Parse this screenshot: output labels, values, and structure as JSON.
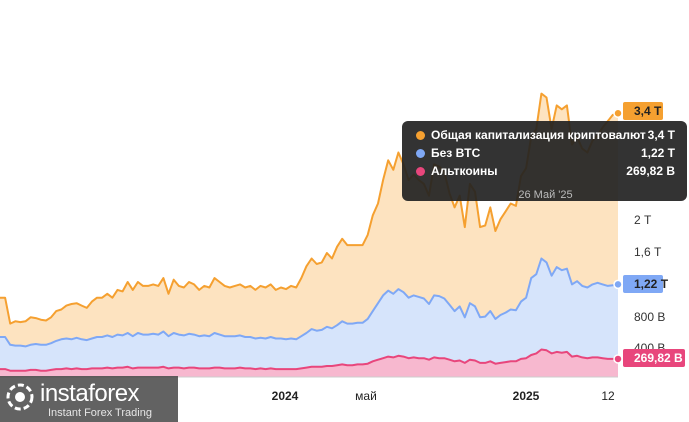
{
  "chart_data": {
    "type": "area",
    "x_labels": [
      "2024",
      "май",
      "2025",
      "12"
    ],
    "y_ticks": [
      "2 Т",
      "1,6 Т",
      "800 В",
      "400 В"
    ],
    "series": [
      {
        "name": "Общая капитализация криптовалют",
        "color": "#f5a030",
        "fill": "#fde3c0",
        "last_label": "3,4 Т",
        "values": [
          1.05,
          1.05,
          0.72,
          0.75,
          0.74,
          0.75,
          0.8,
          0.79,
          0.77,
          0.76,
          0.8,
          0.88,
          0.9,
          0.95,
          0.97,
          0.98,
          0.95,
          0.92,
          1.0,
          1.05,
          1.05,
          1.1,
          1.05,
          1.15,
          1.13,
          1.25,
          1.15,
          1.25,
          1.2,
          1.2,
          1.22,
          1.2,
          1.3,
          1.1,
          1.28,
          1.2,
          1.18,
          1.25,
          1.22,
          1.15,
          1.2,
          1.18,
          1.3,
          1.25,
          1.2,
          1.18,
          1.2,
          1.22,
          1.18,
          1.2,
          1.15,
          1.2,
          1.18,
          1.22,
          1.15,
          1.18,
          1.16,
          1.2,
          1.18,
          1.3,
          1.45,
          1.55,
          1.48,
          1.5,
          1.62,
          1.55,
          1.7,
          1.8,
          1.72,
          1.72,
          1.72,
          1.72,
          1.85,
          2.1,
          2.25,
          2.55,
          2.8,
          2.68,
          2.9,
          2.75,
          2.55,
          2.62,
          2.55,
          2.5,
          2.35,
          2.75,
          2.72,
          2.65,
          2.38,
          2.2,
          2.35,
          1.95,
          2.5,
          2.4,
          1.95,
          1.97,
          2.2,
          1.9,
          2.05,
          2.15,
          2.25,
          2.22,
          2.6,
          2.7,
          3.1,
          3.2,
          3.65,
          3.6,
          3.2,
          3.5,
          3.45,
          3.5,
          3.0,
          3.1,
          2.95,
          2.9,
          3.05,
          3.12,
          3.22,
          3.3,
          3.38,
          3.4
        ]
      },
      {
        "name": "Без BTC",
        "color": "#7fa8f5",
        "fill": "#d6e4fb",
        "last_label": "1,22 Т",
        "values": [
          0.55,
          0.55,
          0.45,
          0.44,
          0.44,
          0.43,
          0.45,
          0.46,
          0.45,
          0.45,
          0.47,
          0.5,
          0.52,
          0.53,
          0.52,
          0.54,
          0.52,
          0.51,
          0.53,
          0.55,
          0.55,
          0.57,
          0.55,
          0.58,
          0.57,
          0.6,
          0.56,
          0.6,
          0.58,
          0.58,
          0.59,
          0.58,
          0.62,
          0.56,
          0.6,
          0.58,
          0.57,
          0.59,
          0.58,
          0.56,
          0.57,
          0.56,
          0.6,
          0.58,
          0.56,
          0.56,
          0.56,
          0.57,
          0.55,
          0.55,
          0.53,
          0.54,
          0.53,
          0.55,
          0.53,
          0.53,
          0.52,
          0.53,
          0.52,
          0.56,
          0.6,
          0.65,
          0.63,
          0.64,
          0.68,
          0.66,
          0.7,
          0.75,
          0.72,
          0.72,
          0.73,
          0.73,
          0.78,
          0.88,
          0.98,
          1.08,
          1.14,
          1.1,
          1.16,
          1.12,
          1.05,
          1.08,
          1.06,
          1.04,
          0.97,
          1.08,
          1.07,
          1.04,
          0.96,
          0.88,
          0.94,
          0.8,
          0.98,
          0.94,
          0.8,
          0.81,
          0.88,
          0.78,
          0.83,
          0.86,
          0.9,
          0.89,
          1.0,
          1.05,
          1.3,
          1.35,
          1.55,
          1.5,
          1.33,
          1.44,
          1.4,
          1.42,
          1.22,
          1.26,
          1.2,
          1.18,
          1.22,
          1.24,
          1.22,
          1.2,
          1.21,
          1.22
        ]
      },
      {
        "name": "Альткоины",
        "color": "#e8467c",
        "fill": "#f7b8cf",
        "last_label": "269,82 В",
        "values": [
          0.14,
          0.14,
          0.12,
          0.12,
          0.12,
          0.12,
          0.13,
          0.13,
          0.12,
          0.12,
          0.13,
          0.14,
          0.14,
          0.15,
          0.14,
          0.15,
          0.14,
          0.14,
          0.15,
          0.15,
          0.15,
          0.16,
          0.15,
          0.16,
          0.16,
          0.17,
          0.15,
          0.16,
          0.16,
          0.16,
          0.16,
          0.16,
          0.17,
          0.15,
          0.16,
          0.16,
          0.15,
          0.16,
          0.16,
          0.15,
          0.15,
          0.15,
          0.16,
          0.16,
          0.15,
          0.15,
          0.15,
          0.16,
          0.15,
          0.15,
          0.14,
          0.15,
          0.14,
          0.15,
          0.14,
          0.14,
          0.14,
          0.14,
          0.14,
          0.15,
          0.16,
          0.17,
          0.17,
          0.17,
          0.18,
          0.18,
          0.19,
          0.2,
          0.19,
          0.19,
          0.2,
          0.2,
          0.21,
          0.24,
          0.26,
          0.28,
          0.3,
          0.29,
          0.31,
          0.3,
          0.28,
          0.29,
          0.28,
          0.28,
          0.26,
          0.29,
          0.28,
          0.28,
          0.26,
          0.24,
          0.25,
          0.22,
          0.26,
          0.25,
          0.22,
          0.22,
          0.24,
          0.21,
          0.22,
          0.23,
          0.24,
          0.24,
          0.27,
          0.28,
          0.32,
          0.34,
          0.39,
          0.38,
          0.34,
          0.36,
          0.35,
          0.36,
          0.3,
          0.31,
          0.29,
          0.28,
          0.29,
          0.29,
          0.28,
          0.27,
          0.27,
          0.27
        ]
      }
    ],
    "tooltip": {
      "date": "26 Май '25",
      "rows": [
        {
          "name": "Общая капитализация криптовалют",
          "value": "3,4 Т",
          "color": "#f5a030"
        },
        {
          "name": "Без BTC",
          "value": "1,22 Т",
          "color": "#7fa8f5"
        },
        {
          "name": "Альткоины",
          "value": "269,82 В",
          "color": "#e8467c"
        }
      ]
    }
  },
  "watermark": {
    "name": "instaforex",
    "subtitle": "Instant Forex Trading"
  }
}
